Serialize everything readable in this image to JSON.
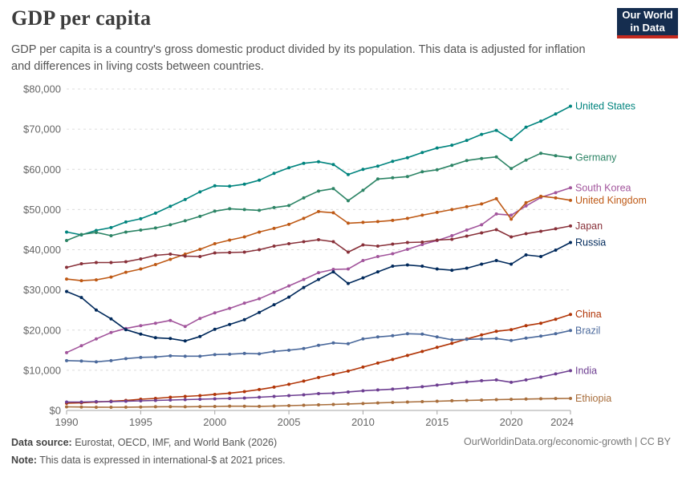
{
  "header": {
    "title": "GDP per capita",
    "subtitle": "GDP per capita is a country's gross domestic product divided by its population. This data is adjusted for inflation and differences in living costs between countries.",
    "logo_line1": "Our World",
    "logo_line2": "in Data",
    "logo_bg": "#152d4f",
    "logo_stripe": "#c52a1f"
  },
  "chart_data": {
    "type": "line",
    "title": "GDP per capita",
    "xlabel": "",
    "ylabel": "",
    "xlim": [
      1990,
      2024
    ],
    "ylim": [
      0,
      80000
    ],
    "xticks": [
      1990,
      1995,
      2000,
      2005,
      2010,
      2015,
      2020,
      2024
    ],
    "yticks": [
      0,
      10000,
      20000,
      30000,
      40000,
      50000,
      60000,
      70000,
      80000
    ],
    "ytick_prefix": "$",
    "grid": "horizontal-dashed",
    "legend_position": "right-edge-labels",
    "x": [
      1990,
      1991,
      1992,
      1993,
      1994,
      1995,
      1996,
      1997,
      1998,
      1999,
      2000,
      2001,
      2002,
      2003,
      2004,
      2005,
      2006,
      2007,
      2008,
      2009,
      2010,
      2011,
      2012,
      2013,
      2014,
      2015,
      2016,
      2017,
      2018,
      2019,
      2020,
      2021,
      2022,
      2023,
      2024
    ],
    "series": [
      {
        "name": "United States",
        "color": "#00847E",
        "values": [
          44400,
          43700,
          44800,
          45500,
          46900,
          47700,
          49100,
          50800,
          52500,
          54400,
          55900,
          55800,
          56300,
          57300,
          59000,
          60400,
          61500,
          61900,
          61200,
          58700,
          60000,
          60800,
          62000,
          62900,
          64200,
          65300,
          66000,
          67200,
          68700,
          69700,
          67400,
          70500,
          72000,
          73800,
          75700
        ]
      },
      {
        "name": "Germany",
        "color": "#2C8465",
        "values": [
          42300,
          43800,
          44300,
          43500,
          44400,
          44900,
          45400,
          46200,
          47200,
          48300,
          49600,
          50200,
          50000,
          49800,
          50500,
          51000,
          52900,
          54600,
          55200,
          52200,
          54800,
          57600,
          57900,
          58200,
          59400,
          59900,
          61000,
          62200,
          62700,
          63100,
          60200,
          62300,
          64000,
          63400,
          62900
        ]
      },
      {
        "name": "South Korea",
        "color": "#A2559C",
        "values": [
          14400,
          16100,
          17800,
          19400,
          20400,
          21100,
          21700,
          22400,
          20900,
          22900,
          24300,
          25400,
          26700,
          27800,
          29400,
          31000,
          32600,
          34300,
          35100,
          35200,
          37300,
          38300,
          39000,
          40100,
          41300,
          42300,
          43500,
          44900,
          46200,
          48900,
          48600,
          50900,
          53000,
          54200,
          55400
        ]
      },
      {
        "name": "United Kingdom",
        "color": "#BE5915",
        "values": [
          32700,
          32300,
          32500,
          33200,
          34400,
          35200,
          36300,
          37600,
          38900,
          40100,
          41500,
          42400,
          43200,
          44400,
          45300,
          46300,
          47800,
          49500,
          49200,
          46600,
          46800,
          47000,
          47300,
          47800,
          48600,
          49300,
          50000,
          50700,
          51400,
          52700,
          47600,
          51700,
          53300,
          52900,
          52300
        ]
      },
      {
        "name": "Japan",
        "color": "#883039",
        "values": [
          35600,
          36500,
          36800,
          36800,
          37000,
          37700,
          38600,
          38900,
          38400,
          38300,
          39200,
          39300,
          39400,
          40000,
          40900,
          41500,
          42000,
          42500,
          42000,
          39400,
          41200,
          40900,
          41400,
          41800,
          41900,
          42400,
          42600,
          43400,
          44200,
          45000,
          43200,
          44000,
          44600,
          45200,
          45900
        ]
      },
      {
        "name": "Russia",
        "color": "#00295B",
        "values": [
          29600,
          28100,
          25000,
          22800,
          20100,
          19000,
          18100,
          17900,
          17300,
          18400,
          20200,
          21400,
          22600,
          24400,
          26300,
          28200,
          30600,
          32600,
          34500,
          31600,
          33000,
          34500,
          35900,
          36200,
          35900,
          35200,
          34900,
          35400,
          36400,
          37300,
          36400,
          38700,
          38300,
          39900,
          41800
        ]
      },
      {
        "name": "China",
        "color": "#B13507",
        "values": [
          1800,
          1900,
          2100,
          2300,
          2500,
          2800,
          3000,
          3300,
          3500,
          3700,
          4000,
          4300,
          4700,
          5200,
          5800,
          6500,
          7300,
          8200,
          9000,
          9800,
          10800,
          11800,
          12700,
          13700,
          14700,
          15700,
          16700,
          17800,
          18800,
          19700,
          20100,
          21100,
          21700,
          22700,
          23900
        ]
      },
      {
        "name": "Brazil",
        "color": "#4C6A9C",
        "values": [
          12400,
          12300,
          12100,
          12400,
          12900,
          13200,
          13300,
          13600,
          13500,
          13500,
          13900,
          14000,
          14200,
          14100,
          14700,
          15000,
          15400,
          16200,
          16800,
          16600,
          17800,
          18300,
          18600,
          19100,
          19000,
          18300,
          17600,
          17700,
          17800,
          17900,
          17400,
          18000,
          18500,
          19100,
          19900
        ]
      },
      {
        "name": "India",
        "color": "#6D3E91",
        "values": [
          2100,
          2100,
          2200,
          2200,
          2300,
          2400,
          2500,
          2600,
          2700,
          2800,
          2900,
          3000,
          3100,
          3300,
          3500,
          3700,
          3900,
          4200,
          4300,
          4600,
          4900,
          5100,
          5300,
          5600,
          5900,
          6300,
          6700,
          7100,
          7400,
          7600,
          7000,
          7600,
          8300,
          9100,
          9900
        ]
      },
      {
        "name": "Ethiopia",
        "color": "#A86E3C",
        "values": [
          900,
          860,
          810,
          800,
          820,
          850,
          920,
          940,
          920,
          950,
          1000,
          1060,
          1050,
          1020,
          1100,
          1190,
          1290,
          1390,
          1500,
          1610,
          1730,
          1870,
          1990,
          2090,
          2190,
          2300,
          2410,
          2500,
          2580,
          2690,
          2760,
          2840,
          2910,
          2960,
          3000
        ]
      }
    ],
    "colors": {
      "gridline": "#dcdcdc",
      "axis": "#a5a5a5",
      "tick_label": "#666666"
    }
  },
  "footer": {
    "source_label": "Data source:",
    "source_text": " Eurostat, OECD, IMF, and World Bank (2026)",
    "note_label": "Note:",
    "note_text": " This data is expressed in international-$ at 2021 prices.",
    "link": "OurWorldinData.org/economic-growth | CC BY"
  }
}
